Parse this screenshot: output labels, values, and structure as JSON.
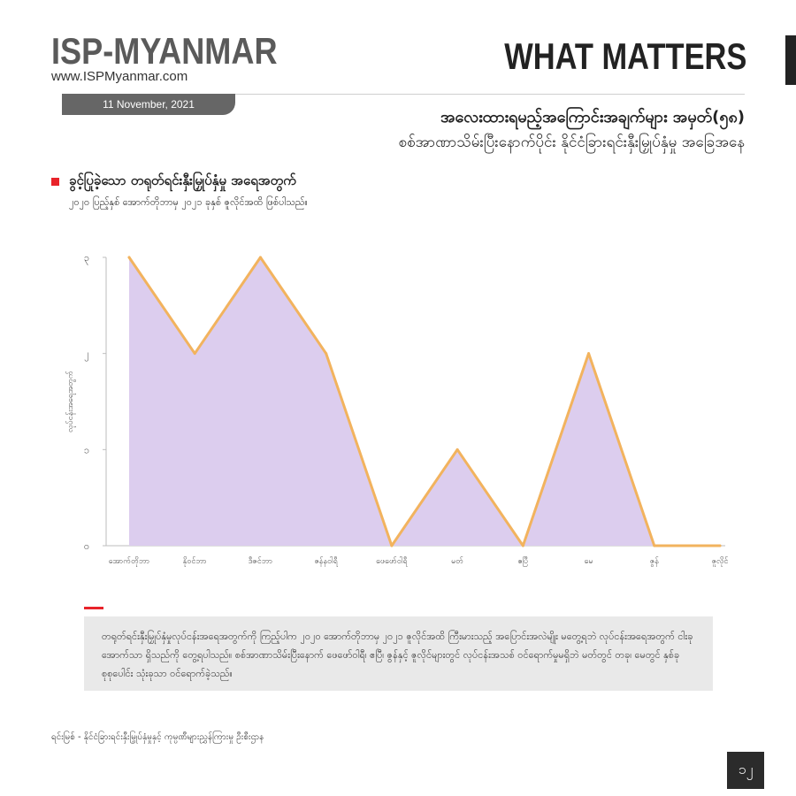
{
  "header": {
    "brand": "ISP-MYANMAR",
    "url": "www.ISPMyanmar.com",
    "section": "WHAT MATTERS",
    "date": "11 November, 2021",
    "title_line1": "အလေးထားရမည့်အကြောင်းအချက်များ အမှတ်(၅၈)",
    "title_line2": "စစ်အာဏာသိမ်းပြီးနောက်ပိုင်း နိုင်ငံခြားရင်းနှီးမြှုပ်နှံမှု အခြေအနေ"
  },
  "subheading": {
    "title": "ခွင့်ပြုခဲ့သော တရုတ်ရင်းနှီးမြှုပ်နှံမှု အရေအတွက်",
    "subtitle": "၂၀၂၀ ပြည့်နှစ် အောက်တိုဘာမှ ၂၀၂၁ ခုနှစ် ဇူလိုင်အထိ ဖြစ်ပါသည်။"
  },
  "chart_data": {
    "type": "area",
    "categories": [
      "အောက်တိုဘာ",
      "နိုဝင်ဘာ",
      "ဒီဇင်ဘာ",
      "ဇန်နဝါရီ",
      "ဖေဖော်ဝါရီ",
      "မတ်",
      "ဧပြီ",
      "မေ",
      "ဇွန်",
      "ဇူလိုင်"
    ],
    "values": [
      3,
      2,
      3,
      2,
      0,
      1,
      0,
      2,
      0,
      0
    ],
    "ylabel": "လုပ်ငန်းအရေအတွက်",
    "yticks": [
      "၀",
      "၁",
      "၂",
      "၃"
    ],
    "ylim": [
      0,
      3
    ],
    "grid": false,
    "colors": {
      "fill": "#dccdee",
      "line": "#f2b35e",
      "axis": "#bdbdbd",
      "text": "#555555"
    }
  },
  "note": {
    "text": "တရုတ်ရင်းနှီးမြှုပ်နှံမှုလုပ်ငန်းအရေအတွက်ကို ကြည့်ပါက ၂၀၂၀ အောက်တိုဘာမှ ၂၀၂၁ ဇူလိုင်အထိ ကြီးမားသည့် အပြောင်းအလဲမျိုး မတွေ့ရဘဲ လုပ်ငန်းအရေအတွက် ငါးခုအောက်သာ ရှိသည်ကို တွေ့ရပါသည်။ စစ်အာဏာသိမ်းပြီးနောက် ဖေဖော်ဝါရီ၊ ဧပြီ၊ ဇွန်နှင့် ဇူလိုင်များတွင် လုပ်ငန်းအသစ် ဝင်ရောက်မှုမရှိဘဲ မတ်တွင် တခု၊ မေတွင် နှစ်ခု စုစုပေါင်း သုံးခုသာ ဝင်ရောက်ခဲ့သည်။"
  },
  "source": "ရင်းမြစ် -   နိုင်ငံခြားရင်းနှီးမြှုပ်နှံမှုနှင့် ကုမ္ပဏီများညွှန်ကြားမှု ဦးစီးဌာန",
  "page_number": "၁၂"
}
